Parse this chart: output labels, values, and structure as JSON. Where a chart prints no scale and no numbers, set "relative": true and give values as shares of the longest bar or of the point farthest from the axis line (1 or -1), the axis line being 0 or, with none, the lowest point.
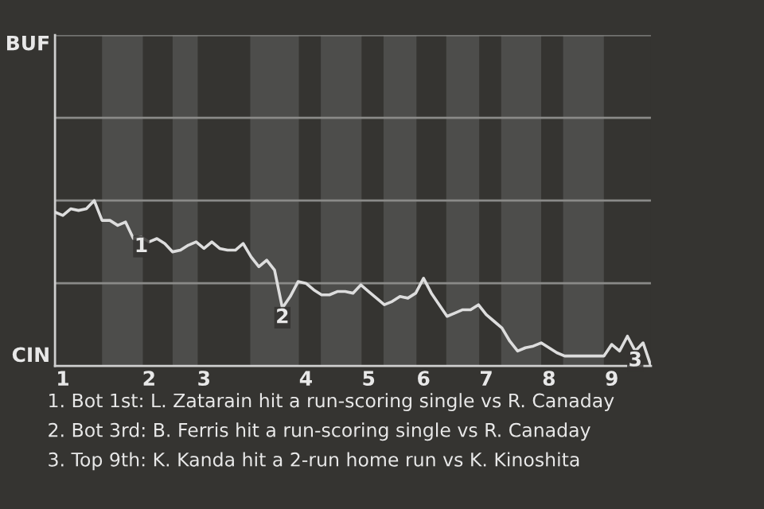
{
  "chart_data": {
    "type": "line",
    "relative": true,
    "categories": [
      null,
      "1",
      null,
      null,
      null,
      null,
      null,
      null,
      null,
      null,
      null,
      null,
      "2",
      null,
      null,
      null,
      null,
      null,
      null,
      "3",
      null,
      null,
      null,
      null,
      null,
      null,
      null,
      null,
      null,
      null,
      null,
      null,
      "4",
      null,
      null,
      null,
      null,
      null,
      null,
      null,
      "5",
      null,
      null,
      null,
      null,
      null,
      null,
      "6",
      null,
      null,
      null,
      null,
      null,
      null,
      null,
      "7",
      null,
      null,
      null,
      null,
      null,
      null,
      null,
      "8",
      null,
      null,
      null,
      null,
      null,
      null,
      null,
      "9",
      null,
      null,
      null,
      null,
      null
    ],
    "series": [
      {
        "color": "#dddddd",
        "values": [
          0.93,
          0.91,
          0.95,
          0.94,
          0.95,
          1.0,
          0.88,
          0.88,
          0.85,
          0.87,
          0.77,
          0.78,
          0.75,
          0.77,
          0.74,
          0.69,
          0.7,
          0.73,
          0.75,
          0.71,
          0.75,
          0.71,
          0.7,
          0.7,
          0.74,
          0.66,
          0.6,
          0.64,
          0.58,
          0.35,
          0.42,
          0.51,
          0.5,
          0.46,
          0.43,
          0.43,
          0.45,
          0.45,
          0.44,
          0.49,
          0.45,
          0.41,
          0.37,
          0.39,
          0.42,
          0.41,
          0.44,
          0.53,
          0.44,
          0.37,
          0.3,
          0.32,
          0.34,
          0.34,
          0.37,
          0.31,
          0.27,
          0.23,
          0.15,
          0.09,
          0.11,
          0.12,
          0.14,
          0.11,
          0.08,
          0.06,
          0.06,
          0.06,
          0.06,
          0.06,
          0.06,
          0.13,
          0.09,
          0.18,
          0.09,
          0.14,
          0.0
        ]
      }
    ],
    "marker": "none",
    "line_style": "solid",
    "ref_lines": [
      {
        "axis": "y",
        "value": 0.5,
        "color": "#8a8a88"
      },
      {
        "axis": "y",
        "value": 1.0,
        "color": "#8a8a88"
      },
      {
        "axis": "y",
        "value": 1.5,
        "color": "#8a8a88"
      },
      {
        "axis": "y",
        "value": 2.0,
        "color": "#8a8a88"
      }
    ],
    "annotations": [
      "BUF",
      "CIN",
      {
        "text": "1",
        "y": 0.78
      },
      {
        "text": "2",
        "y": 0.35
      },
      {
        "text": "3",
        "y": 0.09
      },
      "1. Bot 1st: L. Zatarain hit a run-scoring single vs R. Canaday",
      "2. Bot 3rd: B. Ferris hit a run-scoring single vs R. Canaday",
      "3. Top 9th: K. Kanda hit a 2-run home run vs K. Kinoshita"
    ]
  }
}
